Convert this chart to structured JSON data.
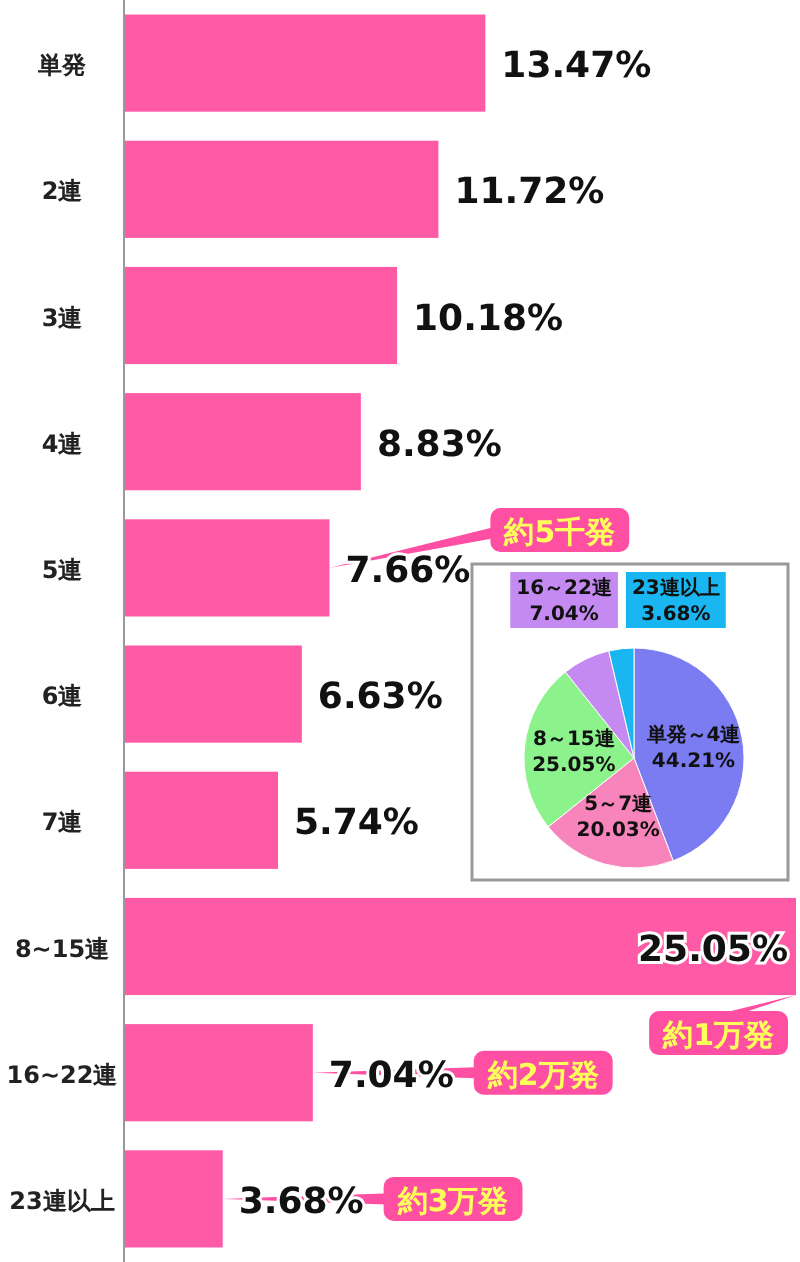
{
  "chart_data": [
    {
      "type": "bar",
      "orientation": "horizontal",
      "categories": [
        "単発",
        "2連",
        "3連",
        "4連",
        "5連",
        "6連",
        "7連",
        "8~15連",
        "16~22連",
        "23連以上"
      ],
      "values": [
        13.47,
        11.72,
        10.18,
        8.83,
        7.66,
        6.63,
        5.74,
        25.05,
        7.04,
        3.68
      ],
      "value_labels": [
        "13.47%",
        "11.72%",
        "10.18%",
        "8.83%",
        "7.66%",
        "6.63%",
        "5.74%",
        "25.05%",
        "7.04%",
        "3.68%"
      ],
      "color": "#ff5aa5",
      "annotations": [
        {
          "text": "約5千発",
          "x": 7.66,
          "y": "5連"
        },
        {
          "text": "約1万発",
          "x": 25.05,
          "y": "8~15連"
        },
        {
          "text": "約2万発",
          "x": 7.04,
          "y": "16~22連"
        },
        {
          "text": "約3万発",
          "x": 3.68,
          "y": "23連以上"
        }
      ]
    },
    {
      "type": "pie",
      "categories": [
        "単発～4連",
        "5～7連",
        "8～15連",
        "16～22連",
        "23連以上"
      ],
      "values": [
        44.21,
        20.03,
        25.05,
        7.04,
        3.68
      ],
      "value_labels": [
        "44.21%",
        "20.03%",
        "25.05%",
        "7.04%",
        "3.68%"
      ],
      "colors": [
        "#7b7bf2",
        "#f784bb",
        "#8cf28c",
        "#c48af2",
        "#1ab6f2"
      ]
    }
  ]
}
